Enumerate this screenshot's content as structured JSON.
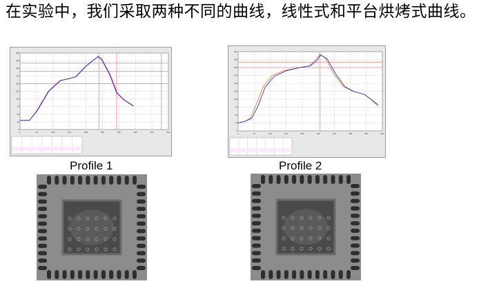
{
  "slide": {
    "text": "在实验中，我们采取两种不同的曲线，线性式和平台烘烤式曲线。"
  },
  "profiles": [
    {
      "caption": "Profile 1"
    },
    {
      "caption": "Profile 2"
    }
  ],
  "chart_data": [
    {
      "type": "line",
      "xlim": [
        0,
        630
      ],
      "ylim": [
        0,
        250
      ],
      "xticks": [
        0,
        70,
        140,
        210,
        280,
        350,
        420,
        490,
        560,
        630
      ],
      "yticks": [
        0,
        25,
        50,
        75,
        100,
        125,
        150,
        175,
        200,
        225,
        250
      ],
      "grid": true,
      "ref_lines_y": [
        217,
        190,
        150
      ],
      "ref_lines_x": [
        335,
        410,
        600
      ],
      "series": [
        {
          "color": "#cc33cc",
          "points": [
            [
              0,
              30
            ],
            [
              40,
              30
            ],
            [
              70,
              60
            ],
            [
              120,
              125
            ],
            [
              170,
              160
            ],
            [
              200,
              165
            ],
            [
              235,
              172
            ],
            [
              280,
              208
            ],
            [
              330,
              238
            ],
            [
              345,
              230
            ],
            [
              380,
              180
            ],
            [
              410,
              120
            ],
            [
              440,
              97
            ],
            [
              480,
              77
            ]
          ]
        },
        {
          "color": "#333399",
          "points": [
            [
              0,
              30
            ],
            [
              40,
              30
            ],
            [
              72,
              60
            ],
            [
              122,
              125
            ],
            [
              172,
              160
            ],
            [
              202,
              165
            ],
            [
              237,
              172
            ],
            [
              282,
              208
            ],
            [
              332,
              239
            ],
            [
              347,
              230
            ],
            [
              382,
              180
            ],
            [
              412,
              120
            ],
            [
              442,
              97
            ],
            [
              482,
              77
            ]
          ]
        }
      ]
    },
    {
      "type": "line",
      "xlim": [
        0,
        630
      ],
      "ylim": [
        0,
        250
      ],
      "xticks": [
        0,
        70,
        140,
        210,
        280,
        350,
        420,
        490,
        560,
        630
      ],
      "yticks": [
        0,
        25,
        50,
        75,
        100,
        125,
        150,
        175,
        200,
        225,
        250
      ],
      "grid": true,
      "ref_lines_y": [
        217,
        200
      ],
      "ref_lines_x": [
        358
      ],
      "series": [
        {
          "color": "#cc8833",
          "points": [
            [
              0,
              25
            ],
            [
              30,
              30
            ],
            [
              55,
              42
            ],
            [
              80,
              85
            ],
            [
              110,
              140
            ],
            [
              150,
              175
            ],
            [
              200,
              190
            ],
            [
              270,
              200
            ],
            [
              310,
              205
            ],
            [
              340,
              225
            ],
            [
              356,
              242
            ],
            [
              380,
              230
            ],
            [
              420,
              178
            ],
            [
              460,
              140
            ],
            [
              500,
              125
            ],
            [
              550,
              115
            ],
            [
              580,
              100
            ],
            [
              610,
              78
            ]
          ]
        },
        {
          "color": "#3333cc",
          "points": [
            [
              0,
              25
            ],
            [
              30,
              30
            ],
            [
              60,
              40
            ],
            [
              88,
              80
            ],
            [
              118,
              138
            ],
            [
              158,
              172
            ],
            [
              208,
              189
            ],
            [
              270,
              200
            ],
            [
              315,
              205
            ],
            [
              345,
              223
            ],
            [
              360,
              240
            ],
            [
              388,
              228
            ],
            [
              428,
              178
            ],
            [
              466,
              140
            ],
            [
              504,
              125
            ],
            [
              552,
              115
            ],
            [
              584,
              98
            ],
            [
              612,
              82
            ]
          ]
        }
      ]
    }
  ]
}
